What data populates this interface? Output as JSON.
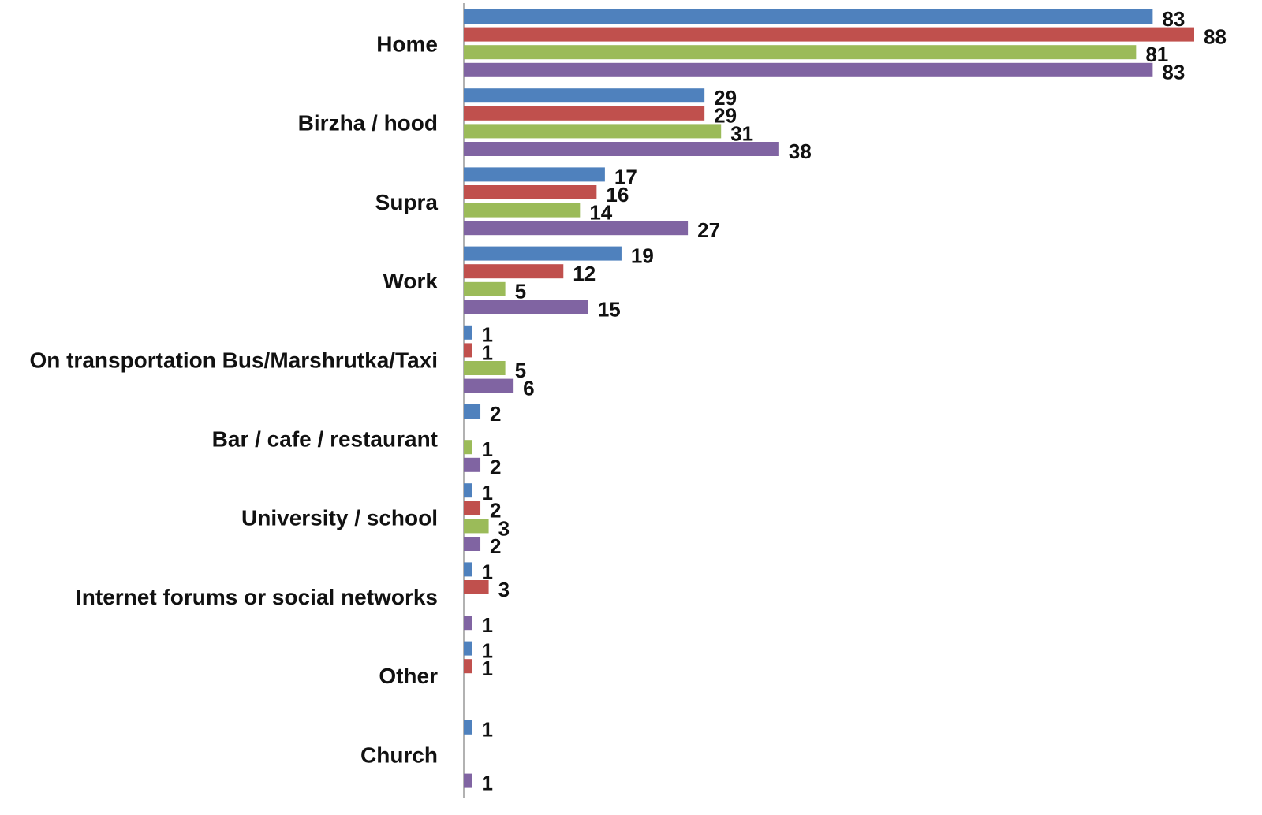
{
  "chart_data": {
    "type": "hbar",
    "categories": [
      "Home",
      "Birzha / hood",
      "Supra",
      "Work",
      "On transportation Bus/Marshrutka/Taxi",
      "Bar / cafe / restaurant",
      "University / school",
      "Internet forums or social networks",
      "Other",
      "Church"
    ],
    "series": [
      {
        "color": "#4f81bd",
        "values": [
          83,
          29,
          17,
          19,
          1,
          2,
          1,
          1,
          1,
          1
        ]
      },
      {
        "color": "#c0504d",
        "values": [
          88,
          29,
          16,
          12,
          1,
          null,
          2,
          3,
          1,
          null
        ]
      },
      {
        "color": "#9bbb59",
        "values": [
          81,
          31,
          14,
          5,
          5,
          1,
          3,
          null,
          null,
          null
        ]
      },
      {
        "color": "#8064a2",
        "values": [
          83,
          38,
          27,
          15,
          6,
          2,
          2,
          1,
          null,
          1
        ]
      }
    ],
    "xlim": [
      0,
      92
    ]
  }
}
